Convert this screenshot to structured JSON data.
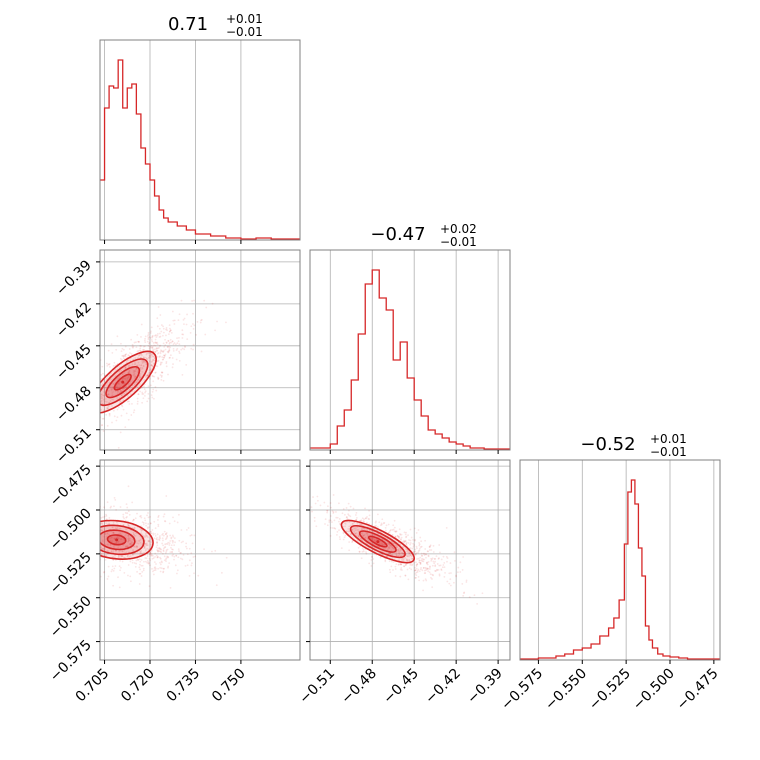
{
  "chart_data": {
    "type": "corner",
    "color": "#d62728",
    "grid": true,
    "titles": [
      {
        "value": "0.71",
        "plus": "+0.01",
        "minus": "−0.01"
      },
      {
        "value": "−0.47",
        "plus": "+0.02",
        "minus": "−0.01"
      },
      {
        "value": "−0.52",
        "plus": "+0.01",
        "minus": "−0.01"
      }
    ],
    "params": [
      {
        "range": [
          0.7035,
          0.7695
        ],
        "ticks": [
          0.705,
          0.72,
          0.735,
          0.75
        ],
        "tick_labels": [
          "0.705",
          "0.720",
          "0.735",
          "0.750"
        ]
      },
      {
        "range": [
          -0.5245,
          -0.3815
        ],
        "ticks": [
          -0.51,
          -0.48,
          -0.45,
          -0.42,
          -0.39
        ],
        "tick_labels": [
          "−0.51",
          "−0.48",
          "−0.45",
          "−0.42",
          "−0.39"
        ]
      },
      {
        "range": [
          -0.5855,
          -0.4715
        ],
        "ticks": [
          -0.575,
          -0.55,
          -0.525,
          -0.5,
          -0.475
        ],
        "tick_labels": [
          "−0.575",
          "−0.550",
          "−0.525",
          "−0.500",
          "−0.475"
        ]
      }
    ],
    "hist": [
      {
        "x": [
          0.7035,
          0.705,
          0.7065,
          0.708,
          0.7095,
          0.711,
          0.7125,
          0.714,
          0.7155,
          0.717,
          0.7185,
          0.72,
          0.7215,
          0.723,
          0.7245,
          0.726,
          0.729,
          0.732,
          0.735,
          0.74,
          0.745,
          0.75,
          0.755,
          0.76,
          0.7695
        ],
        "y": [
          0.3,
          0.66,
          0.77,
          0.76,
          0.9,
          0.66,
          0.76,
          0.78,
          0.63,
          0.46,
          0.38,
          0.3,
          0.22,
          0.15,
          0.11,
          0.09,
          0.07,
          0.05,
          0.03,
          0.02,
          0.01,
          0.005,
          0.01,
          0.005,
          0.005
        ]
      },
      {
        "x": [
          -0.5245,
          -0.51,
          -0.505,
          -0.5,
          -0.495,
          -0.49,
          -0.485,
          -0.48,
          -0.475,
          -0.47,
          -0.465,
          -0.46,
          -0.455,
          -0.45,
          -0.445,
          -0.44,
          -0.435,
          -0.43,
          -0.425,
          -0.42,
          -0.415,
          -0.41,
          -0.4,
          -0.3815
        ],
        "y": [
          0.01,
          0.03,
          0.12,
          0.2,
          0.35,
          0.58,
          0.83,
          0.9,
          0.76,
          0.7,
          0.45,
          0.54,
          0.36,
          0.25,
          0.17,
          0.1,
          0.08,
          0.06,
          0.04,
          0.03,
          0.02,
          0.01,
          0.005,
          0.005
        ]
      },
      {
        "x": [
          -0.5855,
          -0.575,
          -0.565,
          -0.56,
          -0.555,
          -0.55,
          -0.545,
          -0.54,
          -0.535,
          -0.532,
          -0.529,
          -0.526,
          -0.524,
          -0.522,
          -0.52,
          -0.518,
          -0.516,
          -0.514,
          -0.512,
          -0.51,
          -0.507,
          -0.504,
          -0.5,
          -0.495,
          -0.49,
          -0.48,
          -0.4715
        ],
        "y": [
          0.005,
          0.01,
          0.02,
          0.03,
          0.05,
          0.06,
          0.08,
          0.12,
          0.16,
          0.21,
          0.3,
          0.58,
          0.84,
          0.9,
          0.78,
          0.56,
          0.42,
          0.17,
          0.1,
          0.06,
          0.03,
          0.02,
          0.015,
          0.01,
          0.005,
          0.005,
          0.005
        ]
      }
    ],
    "pairs": [
      {
        "x": 0,
        "y": 1,
        "center": [
          0.711,
          -0.476
        ],
        "sd": [
          0.0055,
          0.011
        ],
        "rho": 0.75
      },
      {
        "x": 0,
        "y": 2,
        "center": [
          0.709,
          -0.517
        ],
        "sd": [
          0.006,
          0.0055
        ],
        "rho": -0.15
      },
      {
        "x": 1,
        "y": 2,
        "center": [
          -0.476,
          -0.518
        ],
        "sd": [
          0.013,
          0.006
        ],
        "rho": -0.8
      }
    ],
    "contour_levels": [
      0.5,
      1.0,
      1.5,
      2.0
    ]
  }
}
